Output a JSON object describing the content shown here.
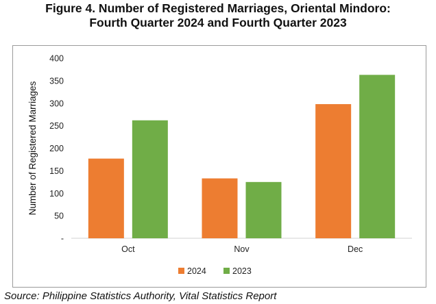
{
  "title_line1": "Figure 4. Number of Registered Marriages, Oriental Mindoro:",
  "title_line2": "Fourth Quarter 2024 and Fourth Quarter 2023",
  "source": "Source: Philippine Statistics Authority, Vital Statistics Report",
  "chart_data": {
    "type": "bar",
    "title": "Figure 4. Number of Registered Marriages, Oriental Mindoro: Fourth Quarter 2024 and Fourth Quarter 2023",
    "xlabel": "",
    "ylabel": "Number of Registered Marriages",
    "ylim": [
      0,
      400
    ],
    "yticks": [
      0,
      50,
      100,
      150,
      200,
      250,
      300,
      350,
      400
    ],
    "ytick_labels": [
      "-",
      "50",
      "100",
      "150",
      "200",
      "250",
      "300",
      "350",
      "400"
    ],
    "categories": [
      "Oct",
      "Nov",
      "Dec"
    ],
    "series": [
      {
        "name": "2024",
        "color": "#ED7D31",
        "values": [
          177,
          133,
          298
        ]
      },
      {
        "name": "2023",
        "color": "#70AD47",
        "values": [
          262,
          125,
          363
        ]
      }
    ],
    "grid": false,
    "legend": "bottom-center"
  }
}
